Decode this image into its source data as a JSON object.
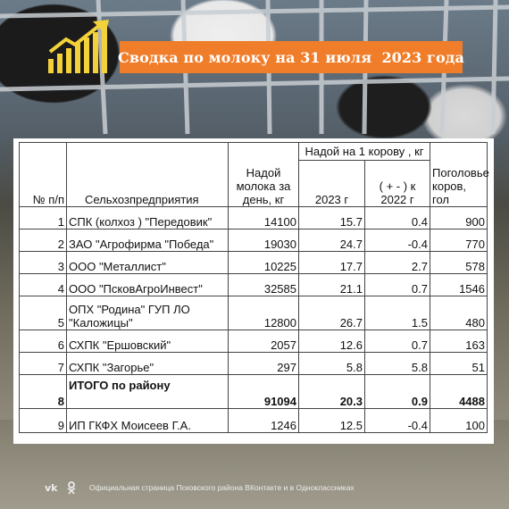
{
  "header": {
    "title": "Сводка по молоку на 31 июля  2023 года",
    "accent_color": "#f07d2a",
    "icon": "growth-chart-icon"
  },
  "table": {
    "headers": {
      "num": "№ п/п",
      "farm": "Сельхозпредприятия",
      "daily_yield": "Надой молока за день, кг",
      "per_cow_group": "Надой на 1 корову , кг",
      "year": "2023 г",
      "diff": "( + - ) к 2022 г",
      "herd": "Поголовье коров, гол"
    },
    "rows": [
      {
        "num": "1",
        "farm": "СПК (колхоз ) \"Передовик\"",
        "daily": "14100",
        "per_cow": "15.7",
        "diff": "0.4",
        "herd": "900"
      },
      {
        "num": "2",
        "farm": "ЗАО \"Агрофирма \"Победа\"",
        "daily": "19030",
        "per_cow": "24.7",
        "diff": "-0.4",
        "herd": "770"
      },
      {
        "num": "3",
        "farm": "ООО \"Металлист\"",
        "daily": "10225",
        "per_cow": "17.7",
        "diff": "2.7",
        "herd": "578"
      },
      {
        "num": "4",
        "farm": "ООО \"ПсковАгроИнвест\"",
        "daily": "32585",
        "per_cow": "21.1",
        "diff": "0.7",
        "herd": "1546"
      },
      {
        "num": "5",
        "farm": "ОПХ \"Родина\" ГУП ЛО \"Каложицы\"",
        "daily": "12800",
        "per_cow": "26.7",
        "diff": "1.5",
        "herd": "480"
      },
      {
        "num": "6",
        "farm": "СХПК \"Ершовский\"",
        "daily": "2057",
        "per_cow": "12.6",
        "diff": "0.7",
        "herd": "163"
      },
      {
        "num": "7",
        "farm": "СХПК \"Загорье\"",
        "daily": "297",
        "per_cow": "5.8",
        "diff": "5.8",
        "herd": "51"
      }
    ],
    "total": {
      "num": "8",
      "farm": "ИТОГО по району",
      "daily": "91094",
      "per_cow": "20.3",
      "diff": "0.9",
      "herd": "4488"
    },
    "extra": {
      "num": "9",
      "farm": "ИП ГКФХ Моисеев Г.А.",
      "daily": "1246",
      "per_cow": "12.5",
      "diff": "-0.4",
      "herd": "100"
    }
  },
  "footer": {
    "text": "Официальная страница Псковского района ВКонтакте и в Одноклассниках",
    "icons": [
      "vk-icon",
      "ok-icon"
    ]
  }
}
